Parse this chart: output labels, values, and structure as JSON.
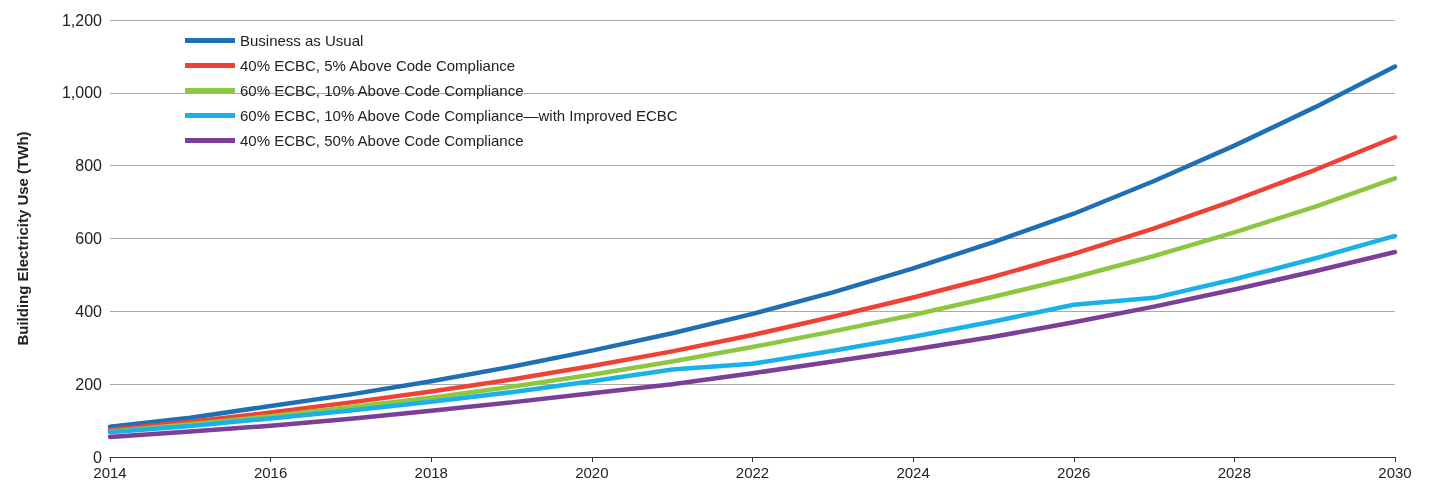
{
  "chart_data": {
    "type": "line",
    "ylabel": "Building Electricity Use (TWh)",
    "x": [
      2014,
      2015,
      2016,
      2017,
      2018,
      2019,
      2020,
      2021,
      2022,
      2023,
      2024,
      2025,
      2026,
      2027,
      2028,
      2029,
      2030
    ],
    "xlim": [
      2014,
      2030
    ],
    "xticks": [
      2014,
      2016,
      2018,
      2020,
      2022,
      2024,
      2026,
      2028,
      2030
    ],
    "ylim": [
      0,
      1200
    ],
    "yticks": [
      0,
      {
        "value": 200,
        "label": "200"
      },
      400,
      600,
      800,
      {
        "value": 1000,
        "label": "1,000"
      },
      {
        "value": 1200,
        "label": "1,200"
      }
    ],
    "grid": "y",
    "legend": "top left",
    "marker": "none",
    "line_style": "solid",
    "series": [
      {
        "name": "Business as Usual",
        "color": "#1f6fb5",
        "values": [
          83,
          108,
          140,
          172,
          208,
          248,
          292,
          340,
          393,
          452,
          518,
          590,
          668,
          758,
          855,
          960,
          1072
        ]
      },
      {
        "name": "40% ECBC, 5% Above Code Compliance",
        "color": "#ef4136",
        "values": [
          75,
          97,
          122,
          150,
          180,
          213,
          250,
          290,
          335,
          385,
          438,
          495,
          558,
          628,
          705,
          788,
          878
        ]
      },
      {
        "name": "60% ECBC, 10% Above Code Compliance",
        "color": "#8dc63f",
        "values": [
          70,
          90,
          112,
          137,
          163,
          193,
          226,
          262,
          302,
          345,
          390,
          440,
          493,
          552,
          617,
          687,
          765
        ]
      },
      {
        "name": "60% ECBC, 10% Above Code Compliance—with Improved ECBC",
        "color": "#1ab0e8",
        "values": [
          68,
          85,
          106,
          128,
          152,
          178,
          208,
          240,
          256,
          292,
          330,
          372,
          418,
          437,
          488,
          545,
          607
        ]
      },
      {
        "name": "40% ECBC, 50% Above Code Compliance",
        "color": "#7b3f98",
        "values": [
          55,
          70,
          86,
          105,
          127,
          150,
          175,
          200,
          230,
          262,
          295,
          330,
          370,
          413,
          460,
          510,
          563
        ]
      }
    ]
  }
}
